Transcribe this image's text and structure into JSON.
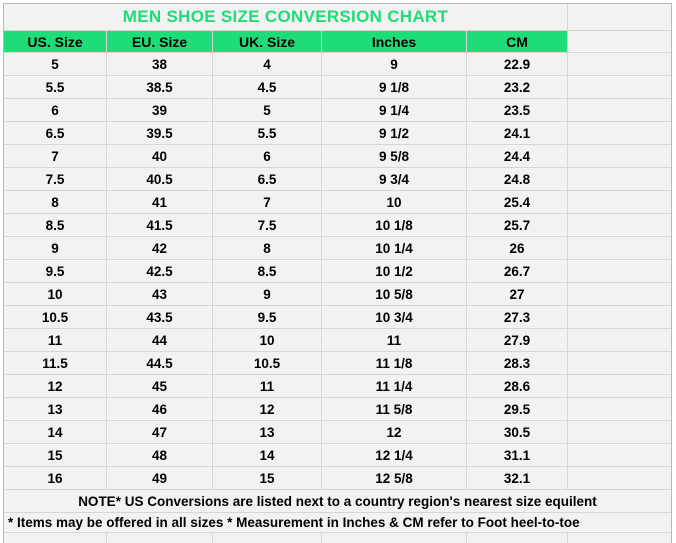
{
  "chart_data": {
    "type": "table",
    "title": "MEN SHOE SIZE CONVERSION CHART",
    "columns": [
      "US. Size",
      "EU. Size",
      "UK. Size",
      "Inches",
      "CM"
    ],
    "rows": [
      [
        "5",
        "38",
        "4",
        "9",
        "22.9"
      ],
      [
        "5.5",
        "38.5",
        "4.5",
        "9 1/8",
        "23.2"
      ],
      [
        "6",
        "39",
        "5",
        "9 1/4",
        "23.5"
      ],
      [
        "6.5",
        "39.5",
        "5.5",
        "9 1/2",
        "24.1"
      ],
      [
        "7",
        "40",
        "6",
        "9 5/8",
        "24.4"
      ],
      [
        "7.5",
        "40.5",
        "6.5",
        "9 3/4",
        "24.8"
      ],
      [
        "8",
        "41",
        "7",
        "10",
        "25.4"
      ],
      [
        "8.5",
        "41.5",
        "7.5",
        "10 1/8",
        "25.7"
      ],
      [
        "9",
        "42",
        "8",
        "10 1/4",
        "26"
      ],
      [
        "9.5",
        "42.5",
        "8.5",
        "10 1/2",
        "26.7"
      ],
      [
        "10",
        "43",
        "9",
        "10 5/8",
        "27"
      ],
      [
        "10.5",
        "43.5",
        "9.5",
        "10 3/4",
        "27.3"
      ],
      [
        "11",
        "44",
        "10",
        "11",
        "27.9"
      ],
      [
        "11.5",
        "44.5",
        "10.5",
        "11 1/8",
        "28.3"
      ],
      [
        "12",
        "45",
        "11",
        "11 1/4",
        "28.6"
      ],
      [
        "13",
        "46",
        "12",
        "11 5/8",
        "29.5"
      ],
      [
        "14",
        "47",
        "13",
        "12",
        "30.5"
      ],
      [
        "15",
        "48",
        "14",
        "12 1/4",
        "31.1"
      ],
      [
        "16",
        "49",
        "15",
        "12 5/8",
        "32.1"
      ]
    ],
    "notes": [
      "NOTE* US Conversions are listed next to a country region's nearest size equilent",
      "* Items may be offered in all sizes * Measurement in Inches & CM refer to Foot heel-to-toe"
    ],
    "layout_hints": {
      "grid": "on",
      "empty_trailing_column": true,
      "partial_empty_row_at_bottom": true
    }
  },
  "colors": {
    "header_green": "#1edc78",
    "title_green": "#1edc78",
    "cell_background": "#f2f2f2",
    "gridline": "#d6d6d6",
    "text": "#000000",
    "page_background": "#ffffff"
  }
}
